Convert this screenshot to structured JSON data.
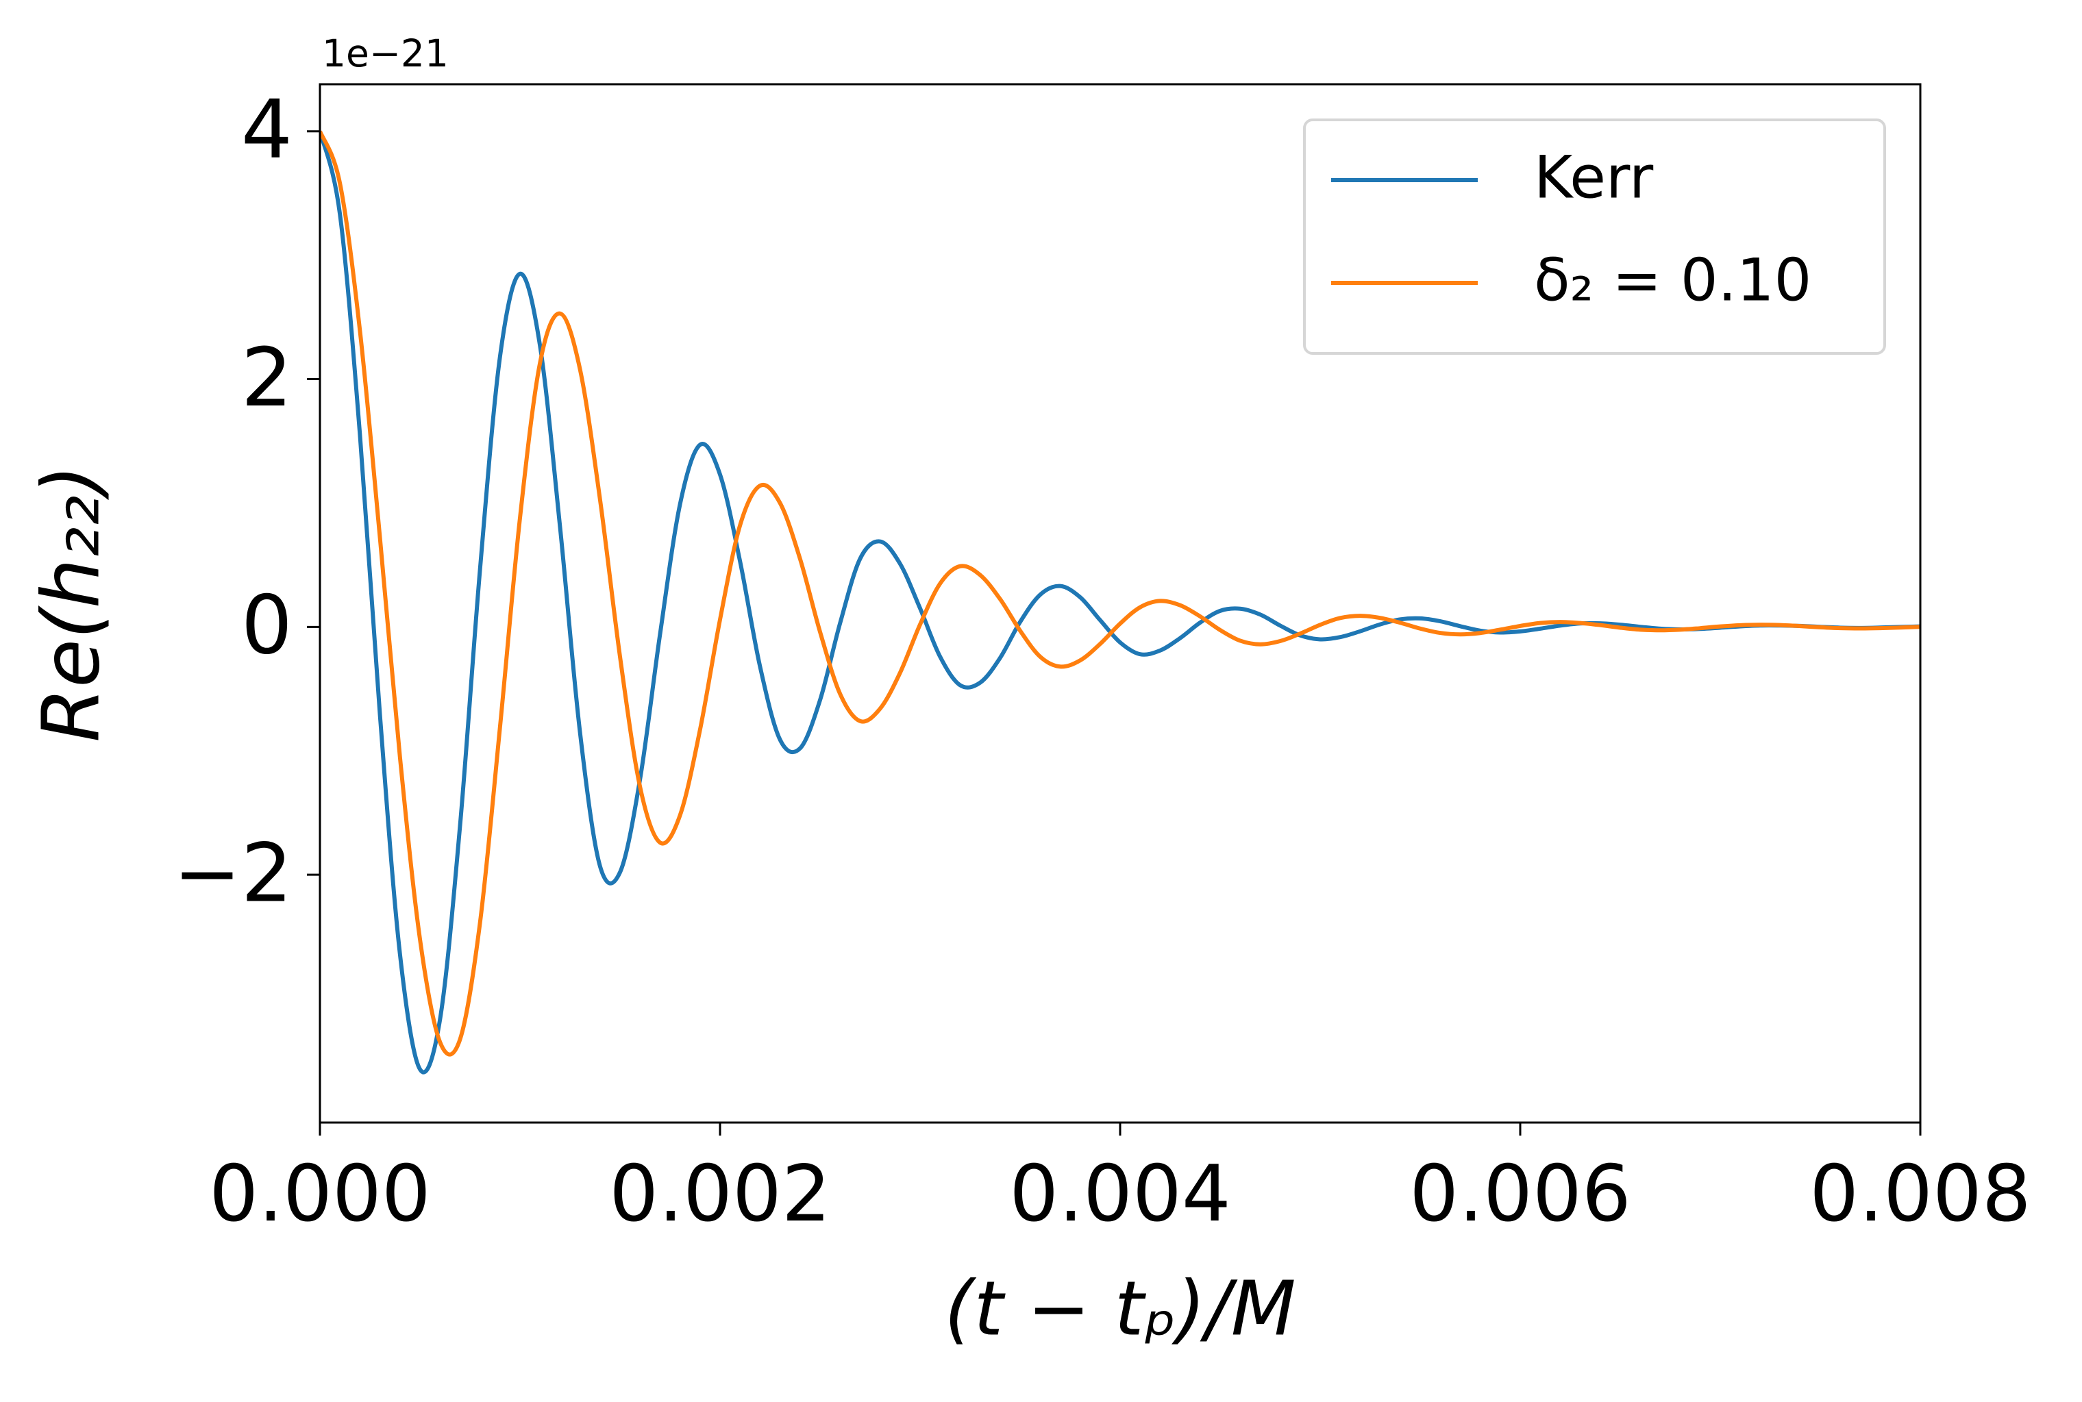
{
  "chart_data": {
    "type": "line",
    "y_label": "Re(h₂₂)",
    "x_label": "(t − tₚ)/M",
    "y_offset_label": "1e−21",
    "x": [
      0,
      0.0001,
      0.0002,
      0.0003,
      0.0004,
      0.0005,
      0.0006,
      0.0007,
      0.0008,
      0.0009,
      0.001,
      0.0011,
      0.0012,
      0.0013,
      0.0014,
      0.0015,
      0.0016,
      0.0017,
      0.0018,
      0.0019,
      0.002,
      0.0021,
      0.0022,
      0.0023,
      0.0024,
      0.0025,
      0.0026,
      0.0027,
      0.0028,
      0.0029,
      0.003,
      0.0031,
      0.0032,
      0.0033,
      0.0034,
      0.0035,
      0.0036,
      0.0037,
      0.0038,
      0.0039,
      0.004,
      0.0041,
      0.0042,
      0.0043,
      0.0044,
      0.0045,
      0.0046,
      0.0047,
      0.0048,
      0.0049,
      0.005,
      0.0051,
      0.0052,
      0.0053,
      0.0054,
      0.0055,
      0.0056,
      0.0057,
      0.0058,
      0.0059,
      0.006,
      0.0061,
      0.0062,
      0.0063,
      0.0064,
      0.0065,
      0.0066,
      0.0067,
      0.0068,
      0.0069,
      0.007,
      0.0071,
      0.0072,
      0.0073,
      0.0074,
      0.0075,
      0.0076,
      0.0077,
      0.0078,
      0.0079,
      0.008
    ],
    "series": [
      {
        "name": "Kerr",
        "color": "#1f77b4",
        "values": [
          4,
          3.33,
          1.55,
          -0.71,
          -2.64,
          -3.57,
          -3.17,
          -1.61,
          0.46,
          2.18,
          2.85,
          2.27,
          0.81,
          -0.85,
          -1.93,
          -1.98,
          -1.23,
          -0.06,
          0.99,
          1.47,
          1.23,
          0.53,
          -0.32,
          -0.91,
          -0.98,
          -0.59,
          0.03,
          0.55,
          0.69,
          0.51,
          0.15,
          -0.24,
          -0.47,
          -0.45,
          -0.25,
          0.04,
          0.26,
          0.33,
          0.24,
          0.055,
          -0.125,
          -0.22,
          -0.19,
          -0.09,
          0.035,
          0.13,
          0.147,
          0.1,
          0.011,
          -0.068,
          -0.1,
          -0.082,
          -0.035,
          0.021,
          0.061,
          0.069,
          0.046,
          0.006,
          -0.03,
          -0.045,
          -0.036,
          -0.014,
          0.011,
          0.028,
          0.029,
          0.018,
          0.001,
          -0.014,
          -0.02,
          -0.016,
          -0.006,
          0.005,
          0.012,
          0.012,
          0.008,
          0.001,
          -0.006,
          -0.008,
          -0.005,
          0,
          0.004
        ]
      },
      {
        "name": "δ₂ = 0.10",
        "color": "#ff7f0e",
        "values": [
          4,
          3.58,
          2.39,
          0.72,
          -1.05,
          -2.52,
          -3.35,
          -3.33,
          -2.39,
          -0.81,
          0.88,
          2.13,
          2.53,
          2.08,
          1.03,
          -0.24,
          -1.29,
          -1.74,
          -1.52,
          -0.83,
          0.06,
          0.82,
          1.14,
          1.0,
          0.55,
          -0.04,
          -0.54,
          -0.76,
          -0.66,
          -0.37,
          0.02,
          0.35,
          0.49,
          0.42,
          0.225,
          -0.03,
          -0.24,
          -0.32,
          -0.27,
          -0.137,
          0.027,
          0.159,
          0.21,
          0.175,
          0.085,
          -0.025,
          -0.111,
          -0.14,
          -0.114,
          -0.054,
          0.017,
          0.072,
          0.09,
          0.073,
          0.034,
          -0.013,
          -0.048,
          -0.06,
          -0.049,
          -0.022,
          0.008,
          0.032,
          0.04,
          0.032,
          0.015,
          -0.006,
          -0.022,
          -0.027,
          -0.022,
          -0.01,
          0.004,
          0.014,
          0.018,
          0.015,
          0.007,
          -0.003,
          -0.01,
          -0.012,
          -0.01,
          -0.005,
          0.001
        ]
      }
    ],
    "xlim": [
      0,
      0.008
    ],
    "xticks": [
      {
        "value": 0,
        "label": "0.000"
      },
      {
        "value": 0.002,
        "label": "0.002"
      },
      {
        "value": 0.004,
        "label": "0.004"
      },
      {
        "value": 0.006,
        "label": "0.006"
      },
      {
        "value": 0.008,
        "label": "0.008"
      }
    ],
    "ylim": [
      -4.0,
      4.38
    ],
    "yticks": [
      {
        "value": -2,
        "label": "−2"
      },
      0,
      2,
      4
    ],
    "grid": false,
    "legend": "upper right"
  }
}
